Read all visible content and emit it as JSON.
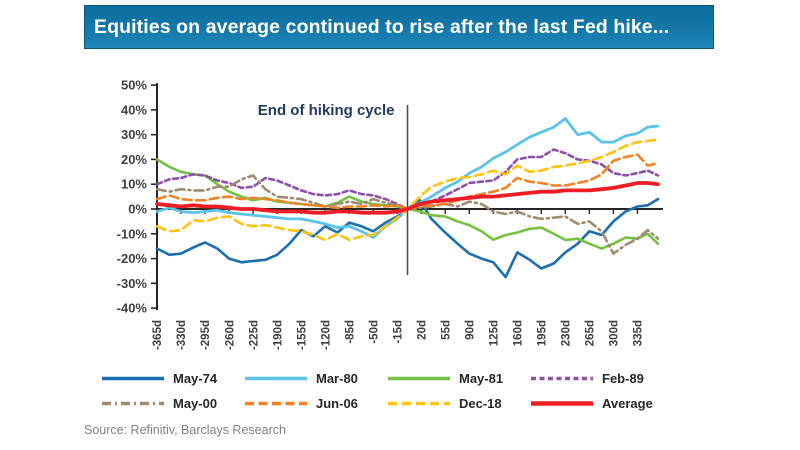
{
  "title": {
    "text": "Equities on average continued to rise after the last Fed hike..."
  },
  "source": {
    "text": "Source: Refinitiv, Barclays Research"
  },
  "chart_data": {
    "type": "line",
    "title": "Equities on average continued to rise after the last Fed hike...",
    "ylim": [
      -40,
      50
    ],
    "grid": false,
    "legend_position": "bottom",
    "y_tick_values": [
      50,
      40,
      30,
      20,
      10,
      0,
      -10,
      -20,
      -30,
      -40
    ],
    "y_tick_labels": [
      "50%",
      "40%",
      "30%",
      "20%",
      "10%",
      "0%",
      "-10%",
      "-20%",
      "-30%",
      "-40%"
    ],
    "x_tick_values": [
      -365,
      -330,
      -295,
      -260,
      -225,
      -190,
      -155,
      -120,
      -85,
      -50,
      -15,
      20,
      55,
      90,
      125,
      160,
      195,
      230,
      265,
      300,
      335
    ],
    "x_tick_labels": [
      "-365d",
      "-330d",
      "-295d",
      "-260d",
      "-225d",
      "-190d",
      "-155d",
      "-120d",
      "-85d",
      "-50d",
      "-15d",
      "20d",
      "55d",
      "90d",
      "125d",
      "160d",
      "195d",
      "230d",
      "265d",
      "300d",
      "335d"
    ],
    "vline": {
      "x": 0,
      "label": "End of hiking cycle"
    },
    "x": [
      -365,
      -347,
      -330,
      -312,
      -295,
      -277,
      -260,
      -242,
      -225,
      -207,
      -190,
      -172,
      -155,
      -137,
      -120,
      -102,
      -85,
      -67,
      -50,
      -32,
      -15,
      0,
      18,
      35,
      55,
      73,
      90,
      108,
      125,
      143,
      160,
      178,
      195,
      213,
      230,
      248,
      265,
      283,
      300,
      318,
      335,
      350,
      365
    ],
    "series": [
      {
        "name": "May-74",
        "color": "#1b6fae",
        "dash": null,
        "width": 2.6,
        "values": [
          -16,
          -18.5,
          -18,
          -15.5,
          -13.5,
          -16,
          -20,
          -21.5,
          -21,
          -20.5,
          -18.5,
          -14,
          -8.5,
          -11,
          -7,
          -9.5,
          -5.5,
          -7,
          -9,
          -5.5,
          -3,
          0,
          3.5,
          -4,
          -9.5,
          -14,
          -18,
          -20,
          -21.5,
          -27.5,
          -17.5,
          -20.5,
          -24,
          -22,
          -17.5,
          -14,
          -9,
          -10.5,
          -5,
          -1,
          1,
          1.5,
          4
        ]
      },
      {
        "name": "Mar-80",
        "color": "#5bc2e9",
        "dash": null,
        "width": 2.8,
        "values": [
          -1,
          0.5,
          -1,
          -1.5,
          -1,
          -0.5,
          -1.5,
          -2,
          -2.5,
          -3,
          -3.5,
          -4,
          -4,
          -5,
          -6,
          -7.5,
          -7,
          -9,
          -11.5,
          -7,
          -4,
          0,
          2.5,
          5,
          8.5,
          11,
          14.5,
          17,
          20.5,
          23,
          26,
          29,
          31,
          33,
          36.5,
          30,
          31,
          27,
          27,
          29.5,
          30.5,
          33,
          33.5
        ]
      },
      {
        "name": "May-81",
        "color": "#76c043",
        "dash": null,
        "width": 2.6,
        "values": [
          20,
          17,
          15,
          14,
          13.5,
          10,
          7,
          5,
          3.5,
          4.5,
          3,
          2.5,
          2,
          1.5,
          1,
          2.5,
          5,
          3,
          2,
          1.5,
          1,
          0,
          -1,
          -2.5,
          -3,
          -5,
          -6.5,
          -9,
          -12.4,
          -10.5,
          -9.5,
          -8,
          -7.5,
          -10,
          -12.5,
          -12,
          -14,
          -16,
          -14,
          -11.5,
          -12,
          -10,
          -14
        ]
      },
      {
        "name": "Feb-89",
        "color": "#8e4fa8",
        "dash": "5 3.5",
        "width": 2.6,
        "values": [
          10,
          12,
          12.5,
          14,
          13.5,
          11.5,
          10.5,
          8.5,
          9,
          12.5,
          11.5,
          9.5,
          7.5,
          6,
          5.5,
          6,
          7.5,
          6,
          5.5,
          4,
          2,
          0,
          2,
          3,
          5.5,
          8,
          10.5,
          11,
          11.5,
          15,
          20,
          21,
          21,
          24,
          22.5,
          20,
          19.5,
          18,
          14.5,
          13.5,
          14.5,
          15.5,
          13.5
        ]
      },
      {
        "name": "May-00",
        "color": "#a08a72",
        "dash": "9 4 2 4",
        "width": 2.6,
        "values": [
          8,
          7,
          8,
          7.5,
          7.5,
          9,
          9,
          12,
          13.5,
          8,
          5,
          4.5,
          4,
          2.5,
          1,
          2,
          3,
          2,
          4,
          2.5,
          1.5,
          0,
          0.5,
          1,
          2,
          1,
          3,
          2,
          -1,
          -2,
          -1,
          -3,
          -4,
          -3.5,
          -3,
          -6,
          -5,
          -9,
          -18,
          -14.5,
          -12,
          -8.5,
          -12
        ]
      },
      {
        "name": "Jun-06",
        "color": "#f08223",
        "dash": "9 4.5",
        "width": 2.6,
        "values": [
          4,
          5.5,
          4,
          3.5,
          3.5,
          4.5,
          5,
          4,
          4.5,
          4,
          3.5,
          2.5,
          2,
          1.5,
          1,
          0.5,
          1,
          1,
          1.5,
          1,
          1.5,
          0,
          1,
          1.5,
          2,
          3.5,
          5,
          6,
          7,
          8.5,
          12.5,
          11,
          10.5,
          9.5,
          9.5,
          10.5,
          11.5,
          14,
          19.5,
          21,
          22,
          17.5,
          18.5
        ]
      },
      {
        "name": "Dec-18",
        "color": "#ffc211",
        "dash": "9 5",
        "width": 2.6,
        "values": [
          -7,
          -9,
          -8.5,
          -4.5,
          -5,
          -3.5,
          -3,
          -6,
          -7,
          -6.5,
          -7.5,
          -8.5,
          -9,
          -10.5,
          -12.5,
          -10,
          -12.5,
          -11,
          -10.5,
          -7,
          -3.5,
          0,
          5,
          9,
          11,
          12.5,
          13,
          14,
          15.5,
          14,
          17.5,
          15,
          15.5,
          17,
          17.5,
          18.5,
          19.5,
          21,
          23,
          25.5,
          27,
          27.5,
          28
        ]
      },
      {
        "name": "Average",
        "color": "#ee1c25",
        "dash": null,
        "width": 3.8,
        "values": [
          2,
          1.5,
          1,
          1.5,
          1,
          1,
          0.5,
          0,
          0,
          -0.5,
          -1,
          -1,
          -1,
          -1.5,
          -1.5,
          -1,
          -1,
          -1.5,
          -1.5,
          -1.5,
          -1,
          0,
          2,
          3,
          3.5,
          4,
          4.5,
          5,
          5,
          5.5,
          6,
          6.5,
          7,
          7,
          7.5,
          7.5,
          7.5,
          8,
          8.5,
          9.5,
          10.5,
          10.5,
          10
        ]
      }
    ]
  }
}
